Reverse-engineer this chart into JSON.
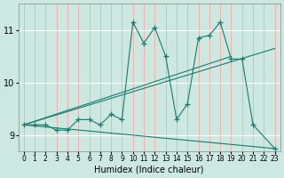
{
  "title": "",
  "xlabel": "Humidex (Indice chaleur)",
  "ylabel": "",
  "bg_color": "#cce8e0",
  "line_color": "#1a7a6e",
  "grid_color_h": "#ffffff",
  "grid_color_v": "#ff9999",
  "xlim": [
    -0.5,
    23.5
  ],
  "ylim": [
    8.7,
    11.5
  ],
  "xticks": [
    0,
    1,
    2,
    3,
    4,
    5,
    6,
    7,
    8,
    9,
    10,
    11,
    12,
    13,
    14,
    15,
    16,
    17,
    18,
    19,
    20,
    21,
    22,
    23
  ],
  "yticks": [
    9,
    10,
    11
  ],
  "lines": [
    {
      "x": [
        0,
        1,
        2,
        3,
        4,
        5,
        6,
        7,
        8,
        9,
        10,
        11,
        12,
        13,
        14,
        15,
        16,
        17,
        18,
        19,
        20,
        21,
        23
      ],
      "y": [
        9.2,
        9.2,
        9.2,
        9.1,
        9.1,
        9.3,
        9.3,
        9.2,
        9.4,
        9.3,
        11.15,
        10.75,
        11.05,
        10.5,
        9.3,
        9.6,
        10.85,
        10.9,
        11.15,
        10.45,
        10.45,
        9.2,
        8.75
      ],
      "marker": true
    },
    {
      "x": [
        0,
        23
      ],
      "y": [
        9.2,
        10.65
      ],
      "marker": false
    },
    {
      "x": [
        0,
        19
      ],
      "y": [
        9.2,
        10.5
      ],
      "marker": false
    },
    {
      "x": [
        0,
        23
      ],
      "y": [
        9.2,
        8.75
      ],
      "marker": false
    }
  ]
}
